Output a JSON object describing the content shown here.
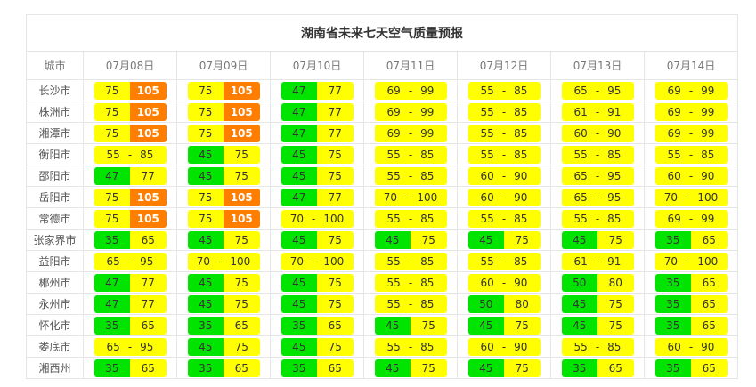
{
  "title": "湖南省未来七天空气质量预报",
  "header": {
    "city_label": "城市",
    "dates": [
      "07月08日",
      "07月09日",
      "07月10日",
      "07月11日",
      "07月12日",
      "07月13日",
      "07月14日"
    ]
  },
  "separator": "-",
  "colors": {
    "green": "#00e400",
    "yellow": "#ffff00",
    "orange": "#ff7e00"
  },
  "rows": [
    {
      "city": "长沙市",
      "forecasts": [
        {
          "low": "75",
          "high": "105"
        },
        {
          "low": "75",
          "high": "105"
        },
        {
          "low": "47",
          "high": "77"
        },
        {
          "low": "69",
          "high": "99"
        },
        {
          "low": "55",
          "high": "85"
        },
        {
          "low": "65",
          "high": "95"
        },
        {
          "low": "69",
          "high": "99"
        }
      ]
    },
    {
      "city": "株洲市",
      "forecasts": [
        {
          "low": "75",
          "high": "105"
        },
        {
          "low": "75",
          "high": "105"
        },
        {
          "low": "47",
          "high": "77"
        },
        {
          "low": "69",
          "high": "99"
        },
        {
          "low": "55",
          "high": "85"
        },
        {
          "low": "61",
          "high": "91"
        },
        {
          "low": "69",
          "high": "99"
        }
      ]
    },
    {
      "city": "湘潭市",
      "forecasts": [
        {
          "low": "75",
          "high": "105"
        },
        {
          "low": "75",
          "high": "105"
        },
        {
          "low": "47",
          "high": "77"
        },
        {
          "low": "69",
          "high": "99"
        },
        {
          "low": "55",
          "high": "85"
        },
        {
          "low": "60",
          "high": "90"
        },
        {
          "low": "69",
          "high": "99"
        }
      ]
    },
    {
      "city": "衡阳市",
      "forecasts": [
        {
          "low": "55",
          "high": "85"
        },
        {
          "low": "45",
          "high": "75"
        },
        {
          "low": "45",
          "high": "75"
        },
        {
          "low": "55",
          "high": "85"
        },
        {
          "low": "55",
          "high": "85"
        },
        {
          "low": "55",
          "high": "85"
        },
        {
          "low": "55",
          "high": "85"
        }
      ]
    },
    {
      "city": "邵阳市",
      "forecasts": [
        {
          "low": "47",
          "high": "77"
        },
        {
          "low": "45",
          "high": "75"
        },
        {
          "low": "45",
          "high": "75"
        },
        {
          "low": "55",
          "high": "85"
        },
        {
          "low": "60",
          "high": "90"
        },
        {
          "low": "65",
          "high": "95"
        },
        {
          "low": "60",
          "high": "90"
        }
      ]
    },
    {
      "city": "岳阳市",
      "forecasts": [
        {
          "low": "75",
          "high": "105"
        },
        {
          "low": "75",
          "high": "105"
        },
        {
          "low": "47",
          "high": "77"
        },
        {
          "low": "70",
          "high": "100"
        },
        {
          "low": "60",
          "high": "90"
        },
        {
          "low": "65",
          "high": "95"
        },
        {
          "low": "70",
          "high": "100"
        }
      ]
    },
    {
      "city": "常德市",
      "forecasts": [
        {
          "low": "75",
          "high": "105"
        },
        {
          "low": "75",
          "high": "105"
        },
        {
          "low": "70",
          "high": "100"
        },
        {
          "low": "55",
          "high": "85"
        },
        {
          "low": "55",
          "high": "85"
        },
        {
          "low": "55",
          "high": "85"
        },
        {
          "low": "69",
          "high": "99"
        }
      ]
    },
    {
      "city": "张家界市",
      "forecasts": [
        {
          "low": "35",
          "high": "65"
        },
        {
          "low": "45",
          "high": "75"
        },
        {
          "low": "45",
          "high": "75"
        },
        {
          "low": "45",
          "high": "75"
        },
        {
          "low": "45",
          "high": "75"
        },
        {
          "low": "45",
          "high": "75"
        },
        {
          "low": "35",
          "high": "65"
        }
      ]
    },
    {
      "city": "益阳市",
      "forecasts": [
        {
          "low": "65",
          "high": "95"
        },
        {
          "low": "70",
          "high": "100"
        },
        {
          "low": "70",
          "high": "100"
        },
        {
          "low": "55",
          "high": "85"
        },
        {
          "low": "55",
          "high": "85"
        },
        {
          "low": "61",
          "high": "91"
        },
        {
          "low": "70",
          "high": "100"
        }
      ]
    },
    {
      "city": "郴州市",
      "forecasts": [
        {
          "low": "47",
          "high": "77"
        },
        {
          "low": "45",
          "high": "75"
        },
        {
          "low": "45",
          "high": "75"
        },
        {
          "low": "55",
          "high": "85"
        },
        {
          "low": "60",
          "high": "90"
        },
        {
          "low": "50",
          "high": "80"
        },
        {
          "low": "35",
          "high": "65"
        }
      ]
    },
    {
      "city": "永州市",
      "forecasts": [
        {
          "low": "47",
          "high": "77"
        },
        {
          "low": "45",
          "high": "75"
        },
        {
          "low": "45",
          "high": "75"
        },
        {
          "low": "55",
          "high": "85"
        },
        {
          "low": "50",
          "high": "80"
        },
        {
          "low": "45",
          "high": "75"
        },
        {
          "low": "35",
          "high": "65"
        }
      ]
    },
    {
      "city": "怀化市",
      "forecasts": [
        {
          "low": "35",
          "high": "65"
        },
        {
          "low": "35",
          "high": "65"
        },
        {
          "low": "35",
          "high": "65"
        },
        {
          "low": "45",
          "high": "75"
        },
        {
          "low": "45",
          "high": "75"
        },
        {
          "low": "45",
          "high": "75"
        },
        {
          "low": "35",
          "high": "65"
        }
      ]
    },
    {
      "city": "娄底市",
      "forecasts": [
        {
          "low": "65",
          "high": "95"
        },
        {
          "low": "45",
          "high": "75"
        },
        {
          "low": "45",
          "high": "75"
        },
        {
          "low": "55",
          "high": "85"
        },
        {
          "low": "60",
          "high": "90"
        },
        {
          "low": "55",
          "high": "85"
        },
        {
          "low": "60",
          "high": "90"
        }
      ]
    },
    {
      "city": "湘西州",
      "forecasts": [
        {
          "low": "35",
          "high": "65"
        },
        {
          "low": "35",
          "high": "65"
        },
        {
          "low": "35",
          "high": "65"
        },
        {
          "low": "45",
          "high": "75"
        },
        {
          "low": "45",
          "high": "75"
        },
        {
          "low": "35",
          "high": "65"
        },
        {
          "low": "35",
          "high": "65"
        }
      ]
    }
  ]
}
